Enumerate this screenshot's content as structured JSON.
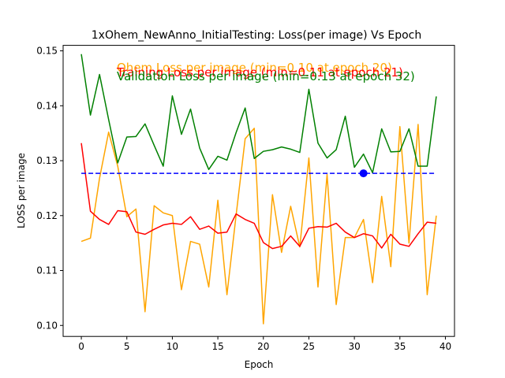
{
  "chart_data": {
    "type": "line",
    "title": "1xOhem_NewAnno_InitialTesting:  Loss(per image) Vs Epoch",
    "xlabel": "Epoch",
    "ylabel": "LOSS per image",
    "xlim": [
      -2,
      41
    ],
    "ylim": [
      0.098,
      0.151
    ],
    "xticks": [
      0,
      5,
      10,
      15,
      20,
      25,
      30,
      35,
      40
    ],
    "yticks": [
      0.1,
      0.11,
      0.12,
      0.13,
      0.14,
      0.15
    ],
    "ytick_labels": [
      "0.10",
      "0.11",
      "0.12",
      "0.13",
      "0.14",
      "0.15"
    ],
    "grid": false,
    "legend_placement": "top-right (overlapping text annotations)",
    "series": [
      {
        "name": "Ohem Loss per image (min=0.10 at epoch 20)",
        "color": "#ffa500",
        "x": [
          0,
          1,
          2,
          3,
          4,
          5,
          6,
          7,
          8,
          9,
          10,
          11,
          12,
          13,
          14,
          15,
          16,
          17,
          18,
          19,
          20,
          21,
          22,
          23,
          24,
          25,
          26,
          27,
          28,
          29,
          30,
          31,
          32,
          33,
          34,
          35,
          36,
          37,
          38,
          39
        ],
        "values": [
          0.1153,
          0.1159,
          0.1268,
          0.1352,
          0.129,
          0.1198,
          0.1212,
          0.1025,
          0.1218,
          0.1205,
          0.12,
          0.1065,
          0.1153,
          0.1148,
          0.107,
          0.1228,
          0.1056,
          0.12,
          0.134,
          0.1359,
          0.1003,
          0.1238,
          0.1133,
          0.1217,
          0.1143,
          0.1305,
          0.107,
          0.1275,
          0.1038,
          0.116,
          0.116,
          0.1193,
          0.1078,
          0.1235,
          0.1107,
          0.1362,
          0.115,
          0.1366,
          0.1056,
          0.12
        ]
      },
      {
        "name": "Training Loss per image (min=0.11 at epoch 21)",
        "color": "#ff0000",
        "x": [
          0,
          1,
          2,
          3,
          4,
          5,
          6,
          7,
          8,
          9,
          10,
          11,
          12,
          13,
          14,
          15,
          16,
          17,
          18,
          19,
          20,
          21,
          22,
          23,
          24,
          25,
          26,
          27,
          28,
          29,
          30,
          31,
          32,
          33,
          34,
          35,
          36,
          37,
          38,
          39
        ],
        "values": [
          0.1332,
          0.1208,
          0.1193,
          0.1184,
          0.1209,
          0.1207,
          0.117,
          0.1166,
          0.1175,
          0.1183,
          0.1186,
          0.1184,
          0.1198,
          0.1175,
          0.1181,
          0.1168,
          0.117,
          0.1203,
          0.1193,
          0.1186,
          0.1151,
          0.114,
          0.1144,
          0.1163,
          0.1144,
          0.1177,
          0.118,
          0.1179,
          0.1186,
          0.117,
          0.116,
          0.1167,
          0.1163,
          0.1141,
          0.1166,
          0.1148,
          0.1144,
          0.1167,
          0.1188,
          0.1186
        ]
      },
      {
        "name": "Validation Loss per image (min=0.13 at epoch 32)",
        "color": "#008000",
        "x": [
          0,
          1,
          2,
          3,
          4,
          5,
          6,
          7,
          8,
          9,
          10,
          11,
          12,
          13,
          14,
          15,
          16,
          17,
          18,
          19,
          20,
          21,
          22,
          23,
          24,
          25,
          26,
          27,
          28,
          29,
          30,
          31,
          32,
          33,
          34,
          35,
          36,
          37,
          38,
          39
        ],
        "values": [
          0.1494,
          0.1383,
          0.1457,
          0.1375,
          0.1296,
          0.1343,
          0.1344,
          0.1367,
          0.1328,
          0.129,
          0.1418,
          0.1348,
          0.1394,
          0.1323,
          0.1284,
          0.1308,
          0.1301,
          0.1351,
          0.1396,
          0.1304,
          0.1317,
          0.132,
          0.1325,
          0.1321,
          0.1315,
          0.143,
          0.1332,
          0.1305,
          0.132,
          0.1381,
          0.1288,
          0.1312,
          0.1278,
          0.1358,
          0.1316,
          0.1317,
          0.1358,
          0.129,
          0.129,
          0.1417
        ]
      }
    ],
    "reference_line": {
      "value": 0.1277,
      "x_range": [
        0,
        39
      ],
      "color": "#0000ff",
      "style": "dashed"
    },
    "marker": {
      "x": 31,
      "y": 0.1277,
      "color": "#0000ff"
    }
  }
}
